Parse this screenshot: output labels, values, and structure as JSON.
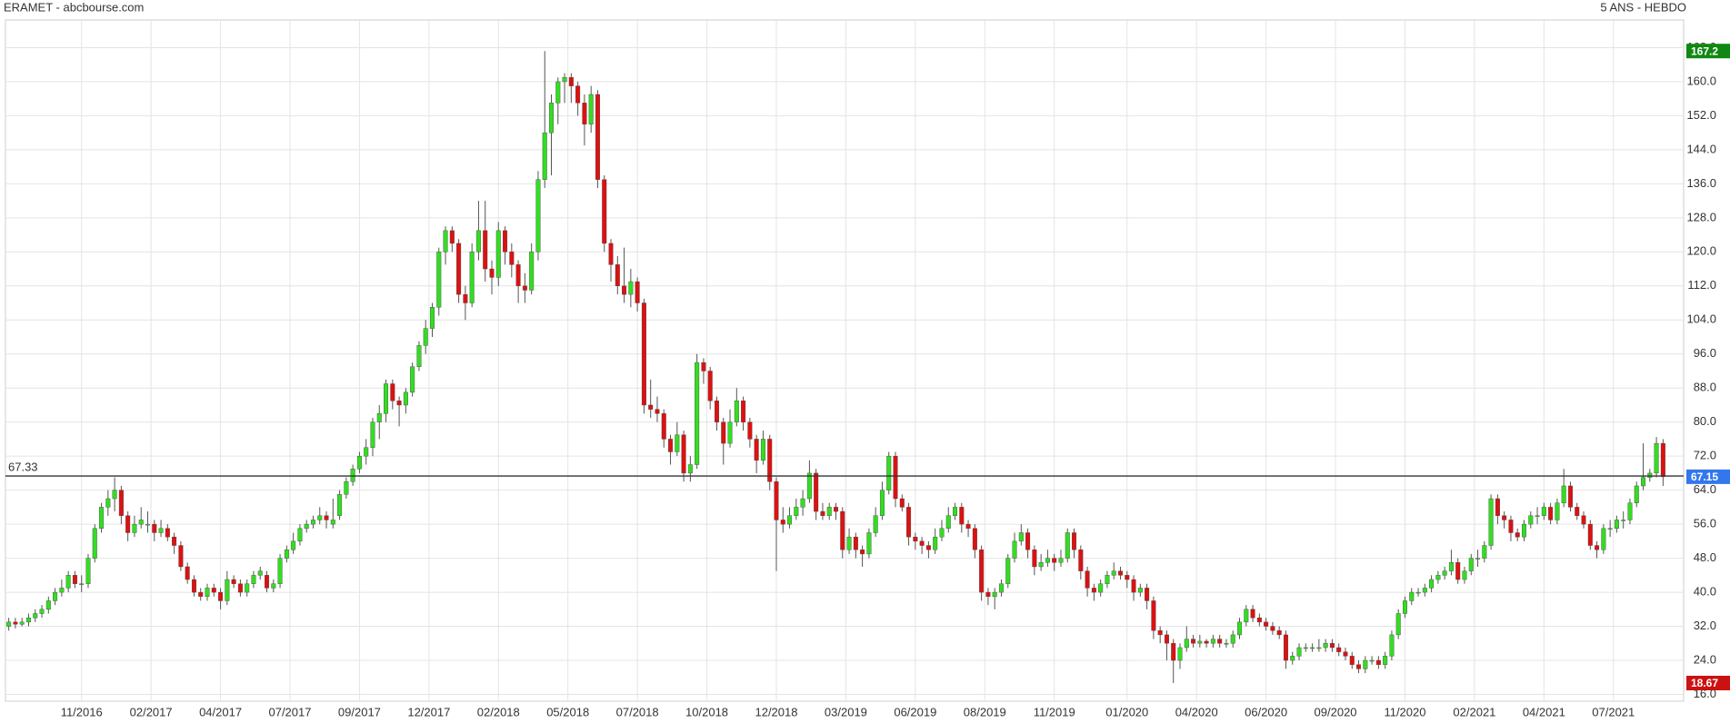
{
  "chart_data": {
    "type": "candlestick",
    "title": "ERAMET - abcbourse.com",
    "subtitle": "5 ANS - HEBDO",
    "candles": [
      [
        32,
        34,
        31,
        33
      ],
      [
        33,
        34,
        31.5,
        32.5
      ],
      [
        32.5,
        34,
        32,
        33
      ],
      [
        33,
        35,
        32,
        34
      ],
      [
        34,
        36,
        33,
        35
      ],
      [
        35,
        37,
        34,
        36
      ],
      [
        36,
        39,
        35,
        38
      ],
      [
        38,
        41,
        37,
        40
      ],
      [
        40,
        43,
        39,
        41
      ],
      [
        41,
        45,
        40,
        44
      ],
      [
        44,
        45,
        41,
        42
      ],
      [
        42,
        44,
        40,
        42
      ],
      [
        42,
        49,
        41,
        48
      ],
      [
        48,
        56,
        47,
        55
      ],
      [
        55,
        61,
        54,
        60
      ],
      [
        60,
        64,
        58,
        62
      ],
      [
        62,
        67,
        59,
        64
      ],
      [
        64,
        65,
        56,
        58
      ],
      [
        58,
        59,
        52,
        54
      ],
      [
        54,
        58,
        53,
        56
      ],
      [
        56,
        60,
        55,
        57
      ],
      [
        56,
        59,
        54,
        56
      ],
      [
        56,
        57,
        52,
        54
      ],
      [
        54,
        57,
        53,
        55
      ],
      [
        55,
        56,
        52,
        53
      ],
      [
        53,
        54,
        49,
        51
      ],
      [
        51,
        52,
        45,
        46
      ],
      [
        46,
        47,
        42,
        43
      ],
      [
        43,
        44,
        39,
        40
      ],
      [
        40,
        41,
        38,
        39
      ],
      [
        39,
        42,
        38,
        41
      ],
      [
        41,
        42,
        39,
        40
      ],
      [
        40,
        41,
        36,
        38
      ],
      [
        38,
        45,
        37,
        43
      ],
      [
        43,
        44,
        41,
        42
      ],
      [
        42,
        43,
        39,
        40
      ],
      [
        40,
        43,
        39,
        42
      ],
      [
        42,
        45,
        41,
        44
      ],
      [
        44,
        46,
        43,
        45
      ],
      [
        44,
        45,
        40,
        41
      ],
      [
        41,
        43,
        40,
        42
      ],
      [
        42,
        49,
        41,
        48
      ],
      [
        48,
        51,
        47,
        50
      ],
      [
        50,
        54,
        49,
        52
      ],
      [
        52,
        56,
        51,
        55
      ],
      [
        55,
        57,
        54,
        56
      ],
      [
        56,
        58,
        55,
        57
      ],
      [
        57,
        60,
        56,
        58
      ],
      [
        58,
        59,
        55,
        57
      ],
      [
        56,
        62,
        55,
        57
      ],
      [
        58,
        64,
        57,
        63
      ],
      [
        63,
        67,
        62,
        66
      ],
      [
        66,
        70,
        65,
        69
      ],
      [
        69,
        73,
        68,
        72
      ],
      [
        72,
        76,
        70,
        74
      ],
      [
        74,
        81,
        72,
        80
      ],
      [
        80,
        84,
        76,
        82
      ],
      [
        82,
        90,
        80,
        89
      ],
      [
        89,
        90,
        83,
        85
      ],
      [
        85,
        86,
        79,
        84
      ],
      [
        84,
        88,
        82,
        87
      ],
      [
        87,
        94,
        86,
        93
      ],
      [
        93,
        99,
        92,
        98
      ],
      [
        98,
        104,
        96,
        102
      ],
      [
        102,
        108,
        100,
        107
      ],
      [
        107,
        121,
        105,
        120
      ],
      [
        120,
        126,
        117,
        125
      ],
      [
        125,
        126,
        120,
        122
      ],
      [
        122,
        123,
        108,
        110
      ],
      [
        110,
        112,
        104,
        108
      ],
      [
        108,
        122,
        107,
        120
      ],
      [
        120,
        132,
        118,
        125
      ],
      [
        125,
        132,
        113,
        116
      ],
      [
        116,
        118,
        110,
        114
      ],
      [
        114,
        127,
        112,
        125
      ],
      [
        125,
        126,
        117,
        120
      ],
      [
        120,
        122,
        114,
        117
      ],
      [
        117,
        118,
        108,
        112
      ],
      [
        112,
        115,
        108,
        111
      ],
      [
        111,
        122,
        110,
        120
      ],
      [
        120,
        139,
        118,
        137
      ],
      [
        137,
        167.2,
        135,
        148
      ],
      [
        148,
        157,
        138,
        155
      ],
      [
        155,
        161,
        150,
        160
      ],
      [
        160,
        162,
        155,
        161
      ],
      [
        161,
        162,
        155,
        159
      ],
      [
        159,
        160,
        152,
        155
      ],
      [
        155,
        157,
        145,
        150
      ],
      [
        150,
        159,
        148,
        157
      ],
      [
        157,
        158,
        135,
        137
      ],
      [
        137,
        138,
        120,
        122
      ],
      [
        122,
        123,
        113,
        117
      ],
      [
        117,
        119,
        110,
        112
      ],
      [
        112,
        121,
        108,
        110
      ],
      [
        110,
        116,
        107,
        113
      ],
      [
        113,
        114,
        106,
        108
      ],
      [
        108,
        109,
        82,
        84
      ],
      [
        84,
        90,
        81,
        83
      ],
      [
        83,
        86,
        80,
        82
      ],
      [
        82,
        83,
        74,
        76
      ],
      [
        76,
        77,
        70,
        73
      ],
      [
        73,
        80,
        72,
        77
      ],
      [
        77,
        78,
        66,
        68
      ],
      [
        68,
        72,
        66,
        70
      ],
      [
        70,
        96,
        69,
        94
      ],
      [
        94,
        95,
        89,
        92
      ],
      [
        92,
        93,
        83,
        85
      ],
      [
        85,
        86,
        78,
        80
      ],
      [
        80,
        81,
        70,
        75
      ],
      [
        75,
        83,
        74,
        80
      ],
      [
        80,
        88,
        79,
        85
      ],
      [
        85,
        86,
        78,
        80
      ],
      [
        80,
        81,
        74,
        76
      ],
      [
        76,
        77,
        68,
        71
      ],
      [
        71,
        78,
        70,
        76
      ],
      [
        76,
        77,
        64,
        66
      ],
      [
        66,
        67,
        45,
        57
      ],
      [
        57,
        60,
        54,
        56
      ],
      [
        56,
        60,
        55,
        58
      ],
      [
        58,
        62,
        57,
        60
      ],
      [
        60,
        64,
        58,
        62
      ],
      [
        62,
        71,
        61,
        68
      ],
      [
        68,
        69,
        57,
        59
      ],
      [
        59,
        61,
        57,
        58
      ],
      [
        58,
        61,
        57,
        60
      ],
      [
        60,
        61,
        57,
        59
      ],
      [
        59,
        60,
        48,
        50
      ],
      [
        50,
        55,
        49,
        53
      ],
      [
        53,
        54,
        48,
        50
      ],
      [
        50,
        51,
        46,
        49
      ],
      [
        49,
        55,
        48,
        54
      ],
      [
        54,
        60,
        53,
        58
      ],
      [
        58,
        66,
        57,
        64
      ],
      [
        64,
        73,
        63,
        72
      ],
      [
        72,
        73,
        60,
        62
      ],
      [
        62,
        63,
        59,
        60
      ],
      [
        60,
        61,
        51,
        53
      ],
      [
        53,
        54,
        50,
        52
      ],
      [
        52,
        53,
        49,
        51
      ],
      [
        51,
        52,
        48,
        50
      ],
      [
        50,
        55,
        49,
        53
      ],
      [
        53,
        57,
        52,
        55
      ],
      [
        55,
        60,
        54,
        58
      ],
      [
        58,
        61,
        57,
        60
      ],
      [
        60,
        61,
        54,
        56
      ],
      [
        56,
        57,
        53,
        55
      ],
      [
        55,
        56,
        48,
        50
      ],
      [
        50,
        51,
        38,
        40
      ],
      [
        40,
        41,
        37,
        39
      ],
      [
        39,
        41,
        36,
        40
      ],
      [
        40,
        43,
        39,
        42
      ],
      [
        42,
        49,
        41,
        48
      ],
      [
        48,
        54,
        47,
        52
      ],
      [
        52,
        56,
        51,
        54
      ],
      [
        54,
        55,
        48,
        50
      ],
      [
        50,
        51,
        44,
        46
      ],
      [
        46,
        49,
        45,
        47
      ],
      [
        47,
        50,
        46,
        48
      ],
      [
        48,
        49,
        45,
        47
      ],
      [
        47,
        50,
        46,
        48
      ],
      [
        48,
        55,
        47,
        54
      ],
      [
        54,
        55,
        48,
        50
      ],
      [
        50,
        51,
        43,
        45
      ],
      [
        45,
        46,
        39,
        41
      ],
      [
        41,
        42,
        38,
        40
      ],
      [
        40,
        43,
        39,
        42
      ],
      [
        42,
        45,
        41,
        44
      ],
      [
        44,
        47,
        43,
        45
      ],
      [
        45,
        46,
        43,
        44
      ],
      [
        44,
        45,
        41,
        43
      ],
      [
        43,
        44,
        38,
        40
      ],
      [
        40,
        42,
        39,
        41
      ],
      [
        41,
        42,
        36,
        38
      ],
      [
        38,
        39,
        29,
        31
      ],
      [
        31,
        32,
        28,
        30
      ],
      [
        30,
        31,
        24,
        28
      ],
      [
        28,
        29,
        18.67,
        24
      ],
      [
        24,
        28,
        22,
        27
      ],
      [
        27,
        32,
        26,
        29
      ],
      [
        29,
        30,
        27,
        28
      ],
      [
        28,
        30,
        27,
        28.5
      ],
      [
        28.5,
        29,
        27,
        28
      ],
      [
        28,
        30,
        27,
        29
      ],
      [
        29,
        30,
        27,
        28
      ],
      [
        28,
        29,
        27,
        28
      ],
      [
        28,
        31,
        27,
        30
      ],
      [
        30,
        34,
        29,
        33
      ],
      [
        33,
        37,
        32,
        36
      ],
      [
        36,
        37,
        33,
        34
      ],
      [
        34,
        35,
        32,
        33
      ],
      [
        33,
        34,
        31,
        32
      ],
      [
        32,
        33,
        30,
        31
      ],
      [
        31,
        32,
        29,
        30
      ],
      [
        30,
        31,
        22,
        24
      ],
      [
        24,
        26,
        23,
        25
      ],
      [
        25,
        28,
        24,
        27
      ],
      [
        27,
        28,
        26,
        27
      ],
      [
        27,
        28,
        26,
        27
      ],
      [
        27,
        29,
        26,
        27
      ],
      [
        27,
        29,
        26,
        28
      ],
      [
        28,
        29,
        26,
        27
      ],
      [
        27,
        28,
        25,
        26
      ],
      [
        26,
        27,
        24,
        25
      ],
      [
        25,
        26,
        22,
        23
      ],
      [
        23,
        24,
        21,
        22
      ],
      [
        22,
        25,
        21,
        24
      ],
      [
        24,
        25,
        23,
        24
      ],
      [
        24,
        25,
        22,
        23
      ],
      [
        23,
        26,
        22,
        25
      ],
      [
        25,
        31,
        24,
        30
      ],
      [
        30,
        36,
        29,
        35
      ],
      [
        35,
        39,
        34,
        38
      ],
      [
        38,
        41,
        37,
        40
      ],
      [
        40,
        41,
        39,
        40
      ],
      [
        40,
        42,
        39,
        41
      ],
      [
        41,
        44,
        40,
        43
      ],
      [
        43,
        45,
        42,
        44
      ],
      [
        44,
        46,
        43,
        45
      ],
      [
        45,
        50,
        44,
        47
      ],
      [
        47,
        48,
        42,
        43
      ],
      [
        43,
        46,
        42,
        45
      ],
      [
        45,
        49,
        44,
        48
      ],
      [
        48,
        50,
        46,
        48
      ],
      [
        48,
        52,
        47,
        51
      ],
      [
        51,
        63,
        50,
        62
      ],
      [
        62,
        63,
        56,
        58
      ],
      [
        58,
        59,
        55,
        57
      ],
      [
        57,
        58,
        52,
        54
      ],
      [
        54,
        55,
        52,
        53
      ],
      [
        53,
        57,
        52,
        56
      ],
      [
        56,
        59,
        55,
        58
      ],
      [
        58,
        60,
        56,
        58
      ],
      [
        58,
        61,
        57,
        60
      ],
      [
        60,
        61,
        56,
        57
      ],
      [
        57,
        62,
        56,
        61
      ],
      [
        61,
        69,
        60,
        65
      ],
      [
        65,
        66,
        59,
        60
      ],
      [
        60,
        61,
        57,
        58
      ],
      [
        58,
        59,
        55,
        56
      ],
      [
        56,
        57,
        50,
        51
      ],
      [
        51,
        52,
        48,
        50
      ],
      [
        50,
        56,
        49,
        55
      ],
      [
        55,
        57,
        53,
        55
      ],
      [
        55,
        58,
        54,
        57
      ],
      [
        57,
        59,
        55,
        57
      ],
      [
        57,
        62,
        56,
        61
      ],
      [
        61,
        66,
        60,
        65
      ],
      [
        65,
        75,
        64,
        67
      ],
      [
        67,
        69,
        66,
        68
      ],
      [
        68,
        76.5,
        67,
        75
      ],
      [
        75,
        76,
        65,
        67.15
      ]
    ],
    "up_color": "#33dd22",
    "down_color": "#dd1111",
    "ylim": [
      14.4,
      174.5
    ],
    "yticks": [
      {
        "value": 16,
        "label": "16.0"
      },
      {
        "value": 24,
        "label": "24.0"
      },
      {
        "value": 32,
        "label": "32.0"
      },
      {
        "value": 40,
        "label": "40.0"
      },
      {
        "value": 48,
        "label": "48.0"
      },
      {
        "value": 56,
        "label": "56.0"
      },
      {
        "value": 64,
        "label": "64.0"
      },
      {
        "value": 72,
        "label": "72.0"
      },
      {
        "value": 80,
        "label": "80.0"
      },
      {
        "value": 88,
        "label": "88.0"
      },
      {
        "value": 96,
        "label": "96.0"
      },
      {
        "value": 104,
        "label": "104.0"
      },
      {
        "value": 112,
        "label": "112.0"
      },
      {
        "value": 120,
        "label": "120.0"
      },
      {
        "value": 128,
        "label": "128.0"
      },
      {
        "value": 136,
        "label": "136.0"
      },
      {
        "value": 144,
        "label": "144.0"
      },
      {
        "value": 152,
        "label": "152.0"
      },
      {
        "value": 160,
        "label": "160.0"
      },
      {
        "value": 168,
        "label": "168.0"
      }
    ],
    "xticks": [
      {
        "value": 11,
        "label": "11/2016"
      },
      {
        "value": 21.5,
        "label": "02/2017"
      },
      {
        "value": 32,
        "label": "04/2017"
      },
      {
        "value": 42.5,
        "label": "07/2017"
      },
      {
        "value": 53,
        "label": "09/2017"
      },
      {
        "value": 63.5,
        "label": "12/2017"
      },
      {
        "value": 74,
        "label": "02/2018"
      },
      {
        "value": 84.5,
        "label": "05/2018"
      },
      {
        "value": 95,
        "label": "07/2018"
      },
      {
        "value": 105.5,
        "label": "10/2018"
      },
      {
        "value": 116,
        "label": "12/2018"
      },
      {
        "value": 126.5,
        "label": "03/2019"
      },
      {
        "value": 137,
        "label": "06/2019"
      },
      {
        "value": 147.5,
        "label": "08/2019"
      },
      {
        "value": 158,
        "label": "11/2019"
      },
      {
        "value": 169,
        "label": "01/2020"
      },
      {
        "value": 179.5,
        "label": "04/2020"
      },
      {
        "value": 190,
        "label": "06/2020"
      },
      {
        "value": 200.5,
        "label": "09/2020"
      },
      {
        "value": 211,
        "label": "11/2020"
      },
      {
        "value": 221.5,
        "label": "02/2021"
      },
      {
        "value": 232,
        "label": "04/2021"
      },
      {
        "value": 242.5,
        "label": "07/2021"
      }
    ],
    "grid": true,
    "reference_line": 67.33,
    "high_marker": 167.2,
    "high_color": "#118811",
    "low_marker": 18.67,
    "low_color": "#cc1111",
    "last_marker": 67.15,
    "last_color": "#3377ee"
  }
}
